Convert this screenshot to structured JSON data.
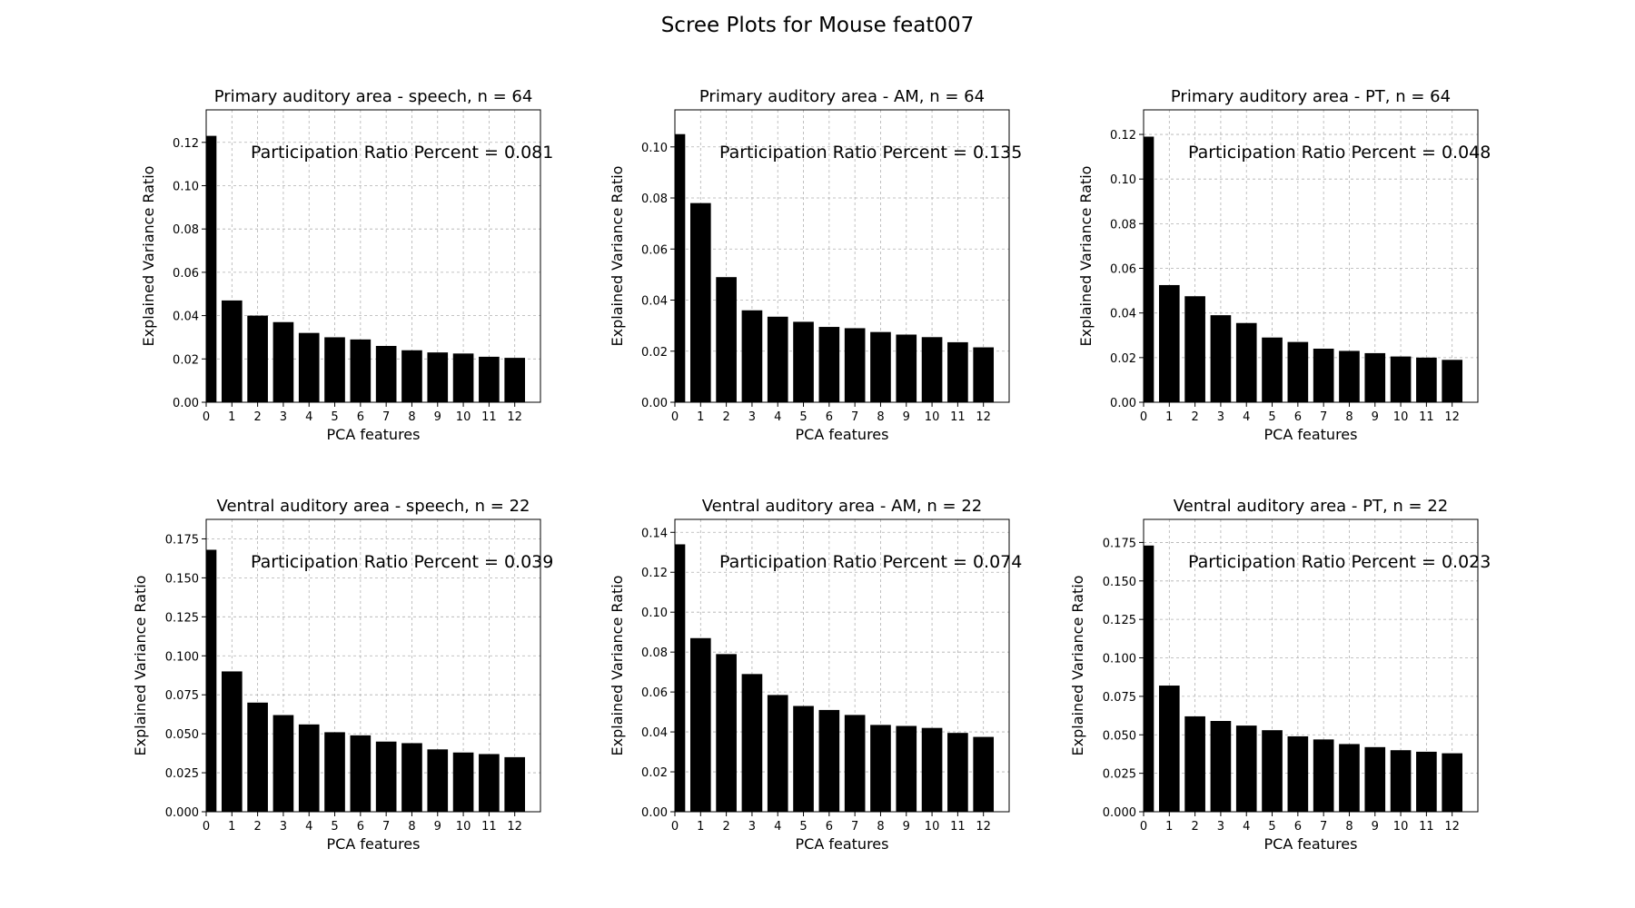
{
  "suptitle": "Scree Plots for Mouse feat007",
  "colors": {
    "bar": "#000000",
    "grid": "#b0b0b0",
    "axes": "#000000",
    "background": "#ffffff"
  },
  "chart_data": [
    {
      "type": "bar",
      "title": "Primary auditory area - speech, n = 64",
      "xlabel": "PCA features",
      "ylabel": "Explained Variance Ratio",
      "annotation": "Participation Ratio Percent = 0.081",
      "categories": [
        "0",
        "1",
        "2",
        "3",
        "4",
        "5",
        "6",
        "7",
        "8",
        "9",
        "10",
        "11",
        "12"
      ],
      "values": [
        0.123,
        0.047,
        0.04,
        0.037,
        0.032,
        0.03,
        0.029,
        0.026,
        0.024,
        0.023,
        0.0225,
        0.021,
        0.0205
      ],
      "xlim": [
        0,
        13
      ],
      "ylim": [
        0,
        0.135
      ],
      "yticks": [
        0.0,
        0.02,
        0.04,
        0.06,
        0.08,
        0.1,
        0.12
      ],
      "ytick_labels": [
        "0.00",
        "0.02",
        "0.04",
        "0.06",
        "0.08",
        "0.10",
        "0.12"
      ],
      "grid": true
    },
    {
      "type": "bar",
      "title": "Primary auditory area - AM, n = 64",
      "xlabel": "PCA features",
      "ylabel": "Explained Variance Ratio",
      "annotation": "Participation Ratio Percent = 0.135",
      "categories": [
        "0",
        "1",
        "2",
        "3",
        "4",
        "5",
        "6",
        "7",
        "8",
        "9",
        "10",
        "11",
        "12"
      ],
      "values": [
        0.105,
        0.078,
        0.049,
        0.036,
        0.0335,
        0.0315,
        0.0295,
        0.029,
        0.0275,
        0.0265,
        0.0255,
        0.0235,
        0.0215
      ],
      "xlim": [
        0,
        13
      ],
      "ylim": [
        0,
        0.1145
      ],
      "yticks": [
        0.0,
        0.02,
        0.04,
        0.06,
        0.08,
        0.1
      ],
      "ytick_labels": [
        "0.00",
        "0.02",
        "0.04",
        "0.06",
        "0.08",
        "0.10"
      ],
      "grid": true
    },
    {
      "type": "bar",
      "title": "Primary auditory area - PT, n = 64",
      "xlabel": "PCA features",
      "ylabel": "Explained Variance Ratio",
      "annotation": "Participation Ratio Percent = 0.048",
      "categories": [
        "0",
        "1",
        "2",
        "3",
        "4",
        "5",
        "6",
        "7",
        "8",
        "9",
        "10",
        "11",
        "12"
      ],
      "values": [
        0.119,
        0.0525,
        0.0475,
        0.039,
        0.0355,
        0.029,
        0.027,
        0.024,
        0.023,
        0.022,
        0.0205,
        0.02,
        0.019
      ],
      "xlim": [
        0,
        13
      ],
      "ylim": [
        0,
        0.131
      ],
      "yticks": [
        0.0,
        0.02,
        0.04,
        0.06,
        0.08,
        0.1,
        0.12
      ],
      "ytick_labels": [
        "0.00",
        "0.02",
        "0.04",
        "0.06",
        "0.08",
        "0.10",
        "0.12"
      ],
      "grid": true
    },
    {
      "type": "bar",
      "title": "Ventral auditory area - speech, n = 22",
      "xlabel": "PCA features",
      "ylabel": "Explained Variance Ratio",
      "annotation": "Participation Ratio Percent = 0.039",
      "categories": [
        "0",
        "1",
        "2",
        "3",
        "4",
        "5",
        "6",
        "7",
        "8",
        "9",
        "10",
        "11",
        "12"
      ],
      "values": [
        0.168,
        0.09,
        0.07,
        0.062,
        0.056,
        0.051,
        0.049,
        0.045,
        0.044,
        0.04,
        0.038,
        0.037,
        0.035
      ],
      "xlim": [
        0,
        13
      ],
      "ylim": [
        0,
        0.1875
      ],
      "yticks": [
        0.0,
        0.025,
        0.05,
        0.075,
        0.1,
        0.125,
        0.15,
        0.175
      ],
      "ytick_labels": [
        "0.000",
        "0.025",
        "0.050",
        "0.075",
        "0.100",
        "0.125",
        "0.150",
        "0.175"
      ],
      "grid": true
    },
    {
      "type": "bar",
      "title": "Ventral auditory area - AM, n = 22",
      "xlabel": "PCA features",
      "ylabel": "Explained Variance Ratio",
      "annotation": "Participation Ratio Percent = 0.074",
      "categories": [
        "0",
        "1",
        "2",
        "3",
        "4",
        "5",
        "6",
        "7",
        "8",
        "9",
        "10",
        "11",
        "12"
      ],
      "values": [
        0.134,
        0.087,
        0.079,
        0.069,
        0.0585,
        0.053,
        0.051,
        0.0485,
        0.0435,
        0.043,
        0.042,
        0.0395,
        0.0375
      ],
      "xlim": [
        0,
        13
      ],
      "ylim": [
        0,
        0.1465
      ],
      "yticks": [
        0.0,
        0.02,
        0.04,
        0.06,
        0.08,
        0.1,
        0.12,
        0.14
      ],
      "ytick_labels": [
        "0.00",
        "0.02",
        "0.04",
        "0.06",
        "0.08",
        "0.10",
        "0.12",
        "0.14"
      ],
      "grid": true
    },
    {
      "type": "bar",
      "title": "Ventral auditory area - PT, n = 22",
      "xlabel": "PCA features",
      "ylabel": "Explained Variance Ratio",
      "annotation": "Participation Ratio Percent = 0.023",
      "categories": [
        "0",
        "1",
        "2",
        "3",
        "4",
        "5",
        "6",
        "7",
        "8",
        "9",
        "10",
        "11",
        "12"
      ],
      "values": [
        0.173,
        0.082,
        0.062,
        0.059,
        0.056,
        0.053,
        0.049,
        0.047,
        0.044,
        0.042,
        0.04,
        0.039,
        0.038
      ],
      "xlim": [
        0,
        13
      ],
      "ylim": [
        0,
        0.19
      ],
      "yticks": [
        0.0,
        0.025,
        0.05,
        0.075,
        0.1,
        0.125,
        0.15,
        0.175
      ],
      "ytick_labels": [
        "0.000",
        "0.025",
        "0.050",
        "0.075",
        "0.100",
        "0.125",
        "0.150",
        "0.175"
      ],
      "grid": true
    }
  ]
}
